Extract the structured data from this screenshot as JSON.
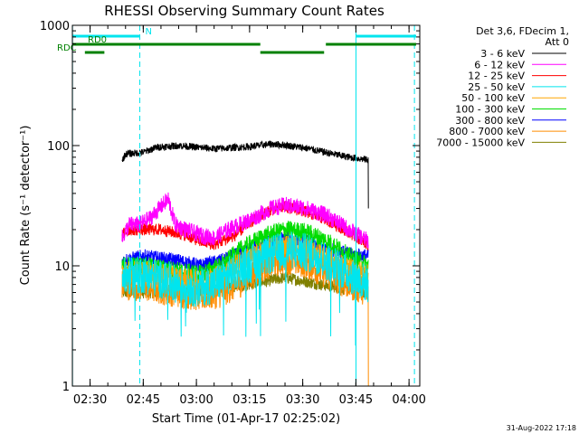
{
  "chart_data": {
    "type": "line",
    "title": "RHESSI Observing Summary Count Rates",
    "xlabel": "Start Time (01-Apr-17 02:25:02)",
    "ylabel": "Count Rate (s⁻¹ detector⁻¹)",
    "yscale": "log",
    "ylim": [
      1,
      1000
    ],
    "xlim_minutes": [
      -0.03,
      98
    ],
    "x_ticks": [
      {
        "label": "02:30",
        "minute": 4.97
      },
      {
        "label": "02:45",
        "minute": 19.97
      },
      {
        "label": "03:00",
        "minute": 34.97
      },
      {
        "label": "03:15",
        "minute": 49.97
      },
      {
        "label": "03:30",
        "minute": 64.97
      },
      {
        "label": "03:45",
        "minute": 79.97
      },
      {
        "label": "04:00",
        "minute": 94.97
      }
    ],
    "y_ticks": [
      {
        "label": "1",
        "value": 1
      },
      {
        "label": "10",
        "value": 10
      },
      {
        "label": "100",
        "value": 100
      },
      {
        "label": "1000",
        "value": 1000
      }
    ],
    "legend": {
      "header_line1": "Det 3,6, FDecim 1,",
      "header_line2": "Att 0",
      "placement": "right"
    },
    "series": [
      {
        "name": "3 - 6 keV",
        "color": "#000000",
        "start": 14.0,
        "end": 83.5,
        "points": [
          [
            14,
            75
          ],
          [
            15,
            85
          ],
          [
            20,
            88
          ],
          [
            24,
            97
          ],
          [
            30,
            100
          ],
          [
            40,
            94
          ],
          [
            50,
            98
          ],
          [
            56,
            103
          ],
          [
            60,
            101
          ],
          [
            66,
            95
          ],
          [
            72,
            87
          ],
          [
            78,
            80
          ],
          [
            83.5,
            76
          ]
        ],
        "noise": 0.03,
        "tail_drop": 30
      },
      {
        "name": "6 - 12 keV",
        "color": "#ff00ff",
        "start": 14.0,
        "end": 83.5,
        "points": [
          [
            14,
            17
          ],
          [
            16,
            22
          ],
          [
            19,
            22
          ],
          [
            22,
            25
          ],
          [
            27,
            36
          ],
          [
            29,
            22
          ],
          [
            32,
            20
          ],
          [
            36,
            18
          ],
          [
            40,
            17
          ],
          [
            44,
            20
          ],
          [
            50,
            24
          ],
          [
            56,
            30
          ],
          [
            60,
            32
          ],
          [
            66,
            30
          ],
          [
            72,
            26
          ],
          [
            78,
            20
          ],
          [
            83.5,
            16
          ]
        ],
        "noise": 0.07
      },
      {
        "name": "12 - 25 keV",
        "color": "#ff0000",
        "start": 14.0,
        "end": 83.5,
        "points": [
          [
            14,
            18
          ],
          [
            16,
            20
          ],
          [
            25,
            20
          ],
          [
            32,
            18
          ],
          [
            36,
            16
          ],
          [
            40,
            15
          ],
          [
            46,
            18
          ],
          [
            50,
            23
          ],
          [
            56,
            29
          ],
          [
            60,
            31
          ],
          [
            66,
            28
          ],
          [
            72,
            24
          ],
          [
            78,
            19
          ],
          [
            83.5,
            15
          ]
        ],
        "noise": 0.05
      },
      {
        "name": "25 - 50 keV",
        "color": "#00e5ee",
        "start": 14.0,
        "end": 83.5,
        "points": [
          [
            14,
            8
          ],
          [
            20,
            8.5
          ],
          [
            30,
            7
          ],
          [
            35,
            6.5
          ],
          [
            40,
            7
          ],
          [
            46,
            9
          ],
          [
            52,
            11
          ],
          [
            58,
            13
          ],
          [
            62,
            13.5
          ],
          [
            68,
            12.5
          ],
          [
            74,
            10
          ],
          [
            80,
            8
          ],
          [
            83.5,
            7
          ]
        ],
        "noise": 0.16,
        "spike_min": 2.0
      },
      {
        "name": "50 - 100 keV",
        "color": "#ffa500",
        "start": 14.0,
        "end": 83.5,
        "points": [
          [
            14,
            9
          ],
          [
            20,
            9
          ],
          [
            30,
            8
          ],
          [
            36,
            7.5
          ],
          [
            42,
            8.5
          ],
          [
            48,
            11
          ],
          [
            54,
            13.5
          ],
          [
            60,
            15
          ],
          [
            66,
            14
          ],
          [
            72,
            11.5
          ],
          [
            78,
            9.5
          ],
          [
            83.5,
            8.5
          ]
        ],
        "noise": 0.09
      },
      {
        "name": "100 - 300 keV",
        "color": "#00dd00",
        "start": 14.0,
        "end": 83.5,
        "points": [
          [
            14,
            10
          ],
          [
            20,
            10
          ],
          [
            30,
            9
          ],
          [
            36,
            8.5
          ],
          [
            42,
            10
          ],
          [
            48,
            14
          ],
          [
            54,
            17.5
          ],
          [
            60,
            20
          ],
          [
            66,
            19
          ],
          [
            72,
            16
          ],
          [
            78,
            12
          ],
          [
            83.5,
            10
          ]
        ],
        "noise": 0.08
      },
      {
        "name": "300 - 800 keV",
        "color": "#0000ff",
        "start": 14.0,
        "end": 83.5,
        "points": [
          [
            14,
            11
          ],
          [
            20,
            12
          ],
          [
            30,
            11
          ],
          [
            36,
            10
          ],
          [
            42,
            11
          ],
          [
            48,
            13
          ],
          [
            54,
            15.5
          ],
          [
            60,
            17
          ],
          [
            66,
            16
          ],
          [
            72,
            14
          ],
          [
            78,
            12.5
          ],
          [
            83.5,
            12
          ]
        ],
        "noise": 0.06
      },
      {
        "name": "800 - 7000 keV",
        "color": "#ff8c00",
        "start": 14.0,
        "end": 83.5,
        "points": [
          [
            14,
            7
          ],
          [
            20,
            6.8
          ],
          [
            30,
            6
          ],
          [
            36,
            5.6
          ],
          [
            42,
            6
          ],
          [
            48,
            7.5
          ],
          [
            54,
            10
          ],
          [
            60,
            11.5
          ],
          [
            66,
            10.5
          ],
          [
            72,
            8.5
          ],
          [
            78,
            7
          ],
          [
            83.5,
            6.2
          ]
        ],
        "noise": 0.13,
        "tail_drop": 0.9
      },
      {
        "name": "7000 - 15000 keV",
        "color": "#808000",
        "start": 14.0,
        "end": 83.5,
        "points": [
          [
            14,
            6
          ],
          [
            30,
            6
          ],
          [
            50,
            7
          ],
          [
            60,
            8
          ],
          [
            70,
            7
          ],
          [
            83.5,
            6
          ]
        ],
        "noise": 0.05
      }
    ],
    "flags": [
      {
        "label": "N",
        "color": "#00e5ee",
        "level": 1,
        "segments": [
          [
            0,
            19.0
          ],
          [
            80.0,
            97
          ]
        ]
      },
      {
        "label": "RD0",
        "color": "#008000",
        "level": 2,
        "segments": [
          [
            0,
            53.0
          ],
          [
            71.5,
            97
          ]
        ]
      },
      {
        "label": "RDC",
        "color": "#008000",
        "level": 3,
        "segments": [
          [
            3.5,
            9.0
          ],
          [
            53.0,
            71.0
          ]
        ]
      }
    ],
    "vlines": [
      {
        "minute": 0.0,
        "style": "solid",
        "color": "#00e5ee"
      },
      {
        "minute": 19.0,
        "style": "dashed",
        "color": "#00e5ee"
      },
      {
        "minute": 80.0,
        "style": "solid",
        "color": "#00e5ee"
      },
      {
        "minute": 96.5,
        "style": "dashed",
        "color": "#00e5ee"
      }
    ]
  },
  "footer_date": "31-Aug-2022 17:18"
}
